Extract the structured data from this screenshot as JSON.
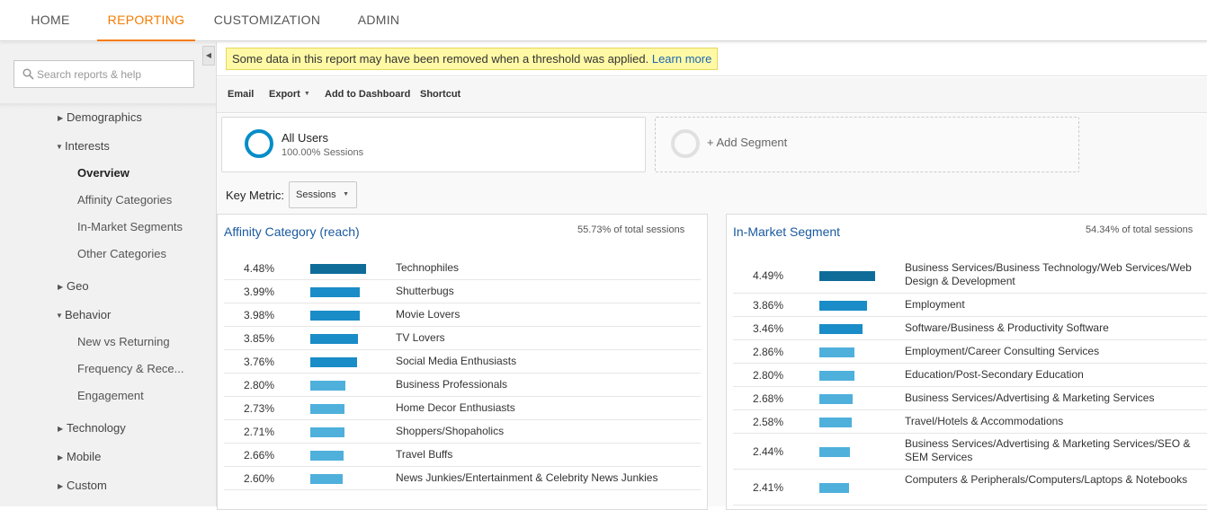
{
  "topnav": {
    "tabs": [
      {
        "label": "HOME"
      },
      {
        "label": "REPORTING"
      },
      {
        "label": "CUSTOMIZATION"
      },
      {
        "label": "ADMIN"
      }
    ],
    "active_tab": "REPORTING",
    "accent_color": "#f57c00"
  },
  "sidebar": {
    "search_placeholder": "Search reports & help",
    "items": [
      {
        "label": "Demographics",
        "icon": "caret-right-icon"
      },
      {
        "label": "Interests",
        "icon": "caret-down-icon"
      },
      {
        "label": "Overview",
        "selected": true
      },
      {
        "label": "Affinity Categories"
      },
      {
        "label": "In-Market Segments"
      },
      {
        "label": "Other Categories"
      },
      {
        "label": "Geo",
        "icon": "caret-right-icon"
      },
      {
        "label": "Behavior",
        "icon": "caret-down-icon"
      },
      {
        "label": "New vs Returning"
      },
      {
        "label": "Frequency & Rece..."
      },
      {
        "label": "Engagement"
      },
      {
        "label": "Technology",
        "icon": "caret-right-icon"
      },
      {
        "label": "Mobile",
        "icon": "caret-right-icon"
      },
      {
        "label": "Custom",
        "icon": "caret-right-icon"
      }
    ]
  },
  "notice": {
    "text": "Some data in this report may have been removed when a threshold was applied.",
    "link": "Learn more",
    "background": "#fff9a6"
  },
  "toolbar": {
    "email": "Email",
    "export": "Export",
    "add_to_dashboard": "Add to Dashboard",
    "shortcut": "Shortcut"
  },
  "segments": {
    "all_users": {
      "title": "All Users",
      "subtitle": "100.00% Sessions"
    },
    "add_segment": "+ Add Segment"
  },
  "key_metric": {
    "label": "Key Metric:",
    "selected": "Sessions"
  },
  "affinity": {
    "title": "Affinity Category (reach)",
    "total": "55.73% of total sessions",
    "rows": [
      {
        "pct": "4.48%",
        "value": 4.48,
        "name": "Technophiles"
      },
      {
        "pct": "3.99%",
        "value": 3.99,
        "name": "Shutterbugs"
      },
      {
        "pct": "3.98%",
        "value": 3.98,
        "name": "Movie Lovers"
      },
      {
        "pct": "3.85%",
        "value": 3.85,
        "name": "TV Lovers"
      },
      {
        "pct": "3.76%",
        "value": 3.76,
        "name": "Social Media Enthusiasts"
      },
      {
        "pct": "2.80%",
        "value": 2.8,
        "name": "Business Professionals"
      },
      {
        "pct": "2.73%",
        "value": 2.73,
        "name": "Home Decor Enthusiasts"
      },
      {
        "pct": "2.71%",
        "value": 2.71,
        "name": "Shoppers/Shopaholics"
      },
      {
        "pct": "2.66%",
        "value": 2.66,
        "name": "Travel Buffs"
      },
      {
        "pct": "2.60%",
        "value": 2.6,
        "name": "News Junkies/Entertainment & Celebrity News Junkies"
      }
    ]
  },
  "inmarket": {
    "title": "In-Market Segment",
    "total": "54.34% of total sessions",
    "rows": [
      {
        "pct": "4.49%",
        "value": 4.49,
        "name": "Business Services/Business Technology/Web Services/Web Design & Development"
      },
      {
        "pct": "3.86%",
        "value": 3.86,
        "name": "Employment"
      },
      {
        "pct": "3.46%",
        "value": 3.46,
        "name": "Software/Business & Productivity Software"
      },
      {
        "pct": "2.86%",
        "value": 2.86,
        "name": "Employment/Career Consulting Services"
      },
      {
        "pct": "2.80%",
        "value": 2.8,
        "name": "Education/Post-Secondary Education"
      },
      {
        "pct": "2.68%",
        "value": 2.68,
        "name": "Business Services/Advertising & Marketing Services"
      },
      {
        "pct": "2.58%",
        "value": 2.58,
        "name": "Travel/Hotels & Accommodations"
      },
      {
        "pct": "2.44%",
        "value": 2.44,
        "name": "Business Services/Advertising & Marketing Services/SEO & SEM Services"
      },
      {
        "pct": "2.41%",
        "value": 2.41,
        "name": "Computers & Peripherals/Computers/Laptops & Notebooks"
      }
    ]
  },
  "bar_colors": {
    "dark": "#0f6c99",
    "mid": "#1a8cc7",
    "light": "#4fb0dc"
  }
}
